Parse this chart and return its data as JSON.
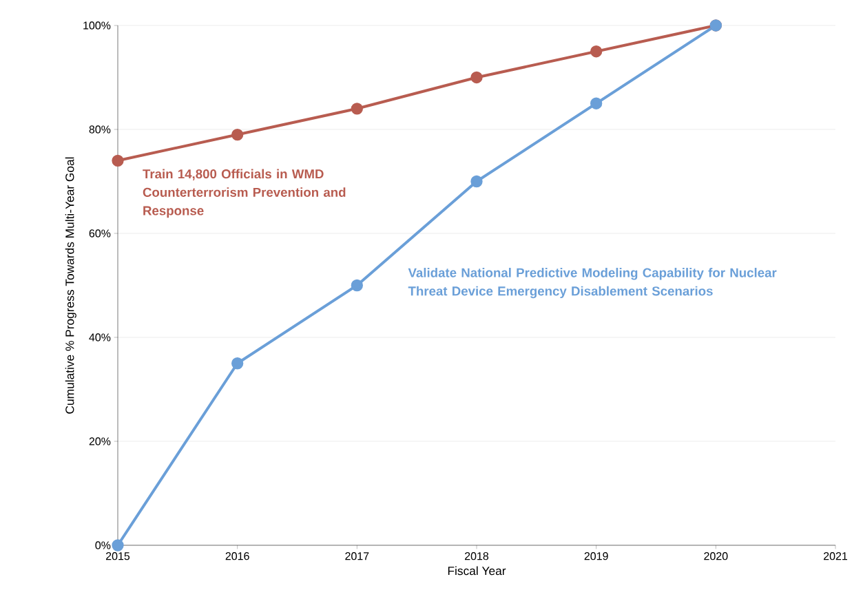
{
  "chart_data": {
    "type": "line",
    "xlabel": "Fiscal Year",
    "ylabel": "Cumulative % Progress Towards Multi-Year Goal",
    "x": [
      2015,
      2016,
      2017,
      2018,
      2019,
      2020
    ],
    "series": [
      {
        "name": "Train 14,800 Officials in WMD Counterterrorism Prevention and Response",
        "color": "#b85c50",
        "values": [
          74,
          79,
          84,
          90,
          95,
          100
        ]
      },
      {
        "name": "Validate National Predictive Modeling Capability for Nuclear Threat Device Emergency Disablement Scenarios",
        "color": "#6a9fd8",
        "values": [
          0,
          35,
          50,
          70,
          85,
          100
        ]
      }
    ],
    "xlim": [
      2015,
      2021
    ],
    "xticks": [
      2015,
      2016,
      2017,
      2018,
      2019,
      2020,
      2021
    ],
    "ylim": [
      0,
      100
    ],
    "yticks": [
      {
        "value": 0,
        "label": "0%"
      },
      {
        "value": 20,
        "label": "20%"
      },
      {
        "value": 40,
        "label": "40%"
      },
      {
        "value": 60,
        "label": "60%"
      },
      {
        "value": 80,
        "label": "80%"
      },
      {
        "value": 100,
        "label": "100%"
      }
    ],
    "grid": "y",
    "marker": "circle",
    "line_style": "solid"
  }
}
